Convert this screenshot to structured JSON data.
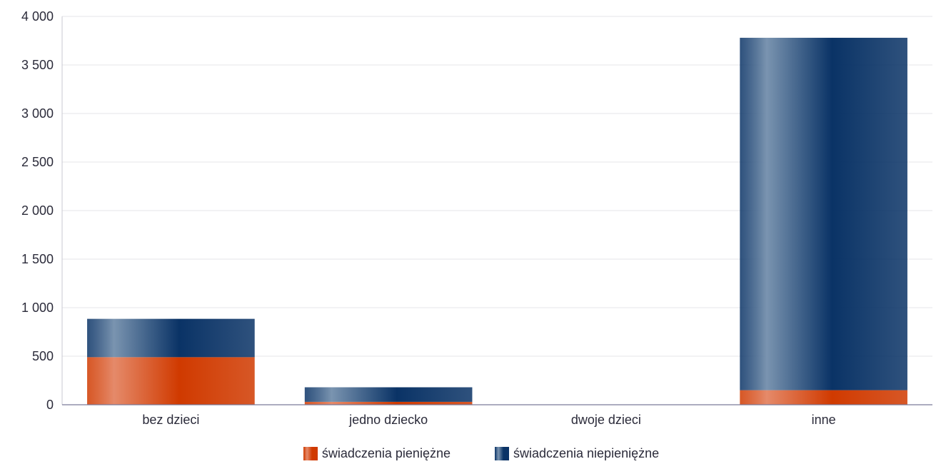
{
  "chart_data": {
    "type": "bar",
    "stacked": true,
    "title": "",
    "xlabel": "",
    "ylabel": "",
    "categories": [
      "bez dzieci",
      "jedno dziecko",
      "dwoje dzieci",
      "inne"
    ],
    "series": [
      {
        "name": "świadczenia pieniężne",
        "values": [
          490,
          30,
          0,
          150
        ],
        "color": "#d03a00",
        "highlight": "#e58a6a"
      },
      {
        "name": "świadczenia niepieniężne",
        "values": [
          395,
          150,
          0,
          3630
        ],
        "color": "#0a3366",
        "highlight": "#7a94b0"
      }
    ],
    "ylim": [
      0,
      4000
    ],
    "yticks": [
      0,
      500,
      1000,
      1500,
      2000,
      2500,
      3000,
      3500,
      4000
    ],
    "ytick_labels": [
      "0",
      "500",
      "1 000",
      "1 500",
      "2 000",
      "2 500",
      "3 000",
      "3 500",
      "4 000"
    ],
    "grid": true,
    "legend_position": "bottom-center"
  }
}
